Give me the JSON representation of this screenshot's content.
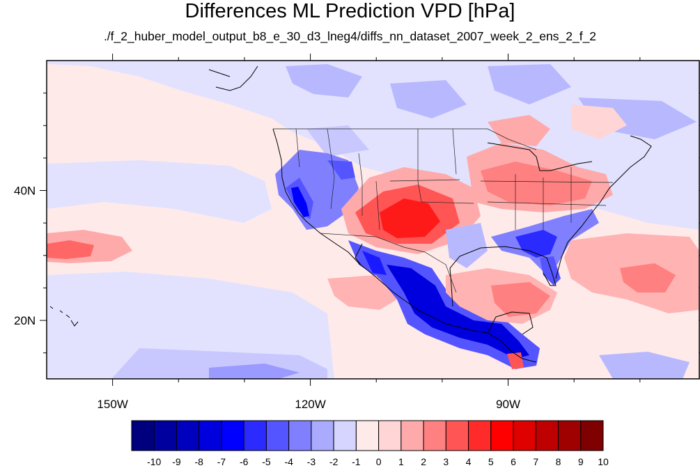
{
  "title": "Differences ML Prediction VPD [hPa]",
  "subtitle": "./f_2_huber_model_output_b8_e_30_d3_lneg4/diffs_nn_dataset_2007_week_2_ens_2_f_2",
  "map": {
    "lon_range": [
      -160,
      -61
    ],
    "lat_range": [
      11,
      60
    ],
    "x_ticks": [
      {
        "lon": -150,
        "label": "150W"
      },
      {
        "lon": -120,
        "label": "120W"
      },
      {
        "lon": -90,
        "label": "90W"
      }
    ],
    "y_ticks": [
      {
        "lat": 40,
        "label": "40N"
      },
      {
        "lat": 20,
        "label": "20N"
      }
    ]
  },
  "colorbar": {
    "colors": [
      "#00007f",
      "#00009f",
      "#0000bf",
      "#0000df",
      "#0000ff",
      "#2b2bff",
      "#5555ff",
      "#8080ff",
      "#aaaaff",
      "#d5d5ff",
      "#ffeaea",
      "#ffd5d5",
      "#ffaaaa",
      "#ff8080",
      "#ff5555",
      "#ff2b2b",
      "#ff0000",
      "#df0000",
      "#bf0000",
      "#9f0000",
      "#7f0000"
    ],
    "labels": [
      "-10",
      "-9",
      "-8",
      "-7",
      "-6",
      "-5",
      "-4",
      "-3",
      "-2",
      "-1",
      "0",
      "1",
      "2",
      "3",
      "4",
      "5",
      "6",
      "7",
      "8",
      "9",
      "10"
    ]
  }
}
